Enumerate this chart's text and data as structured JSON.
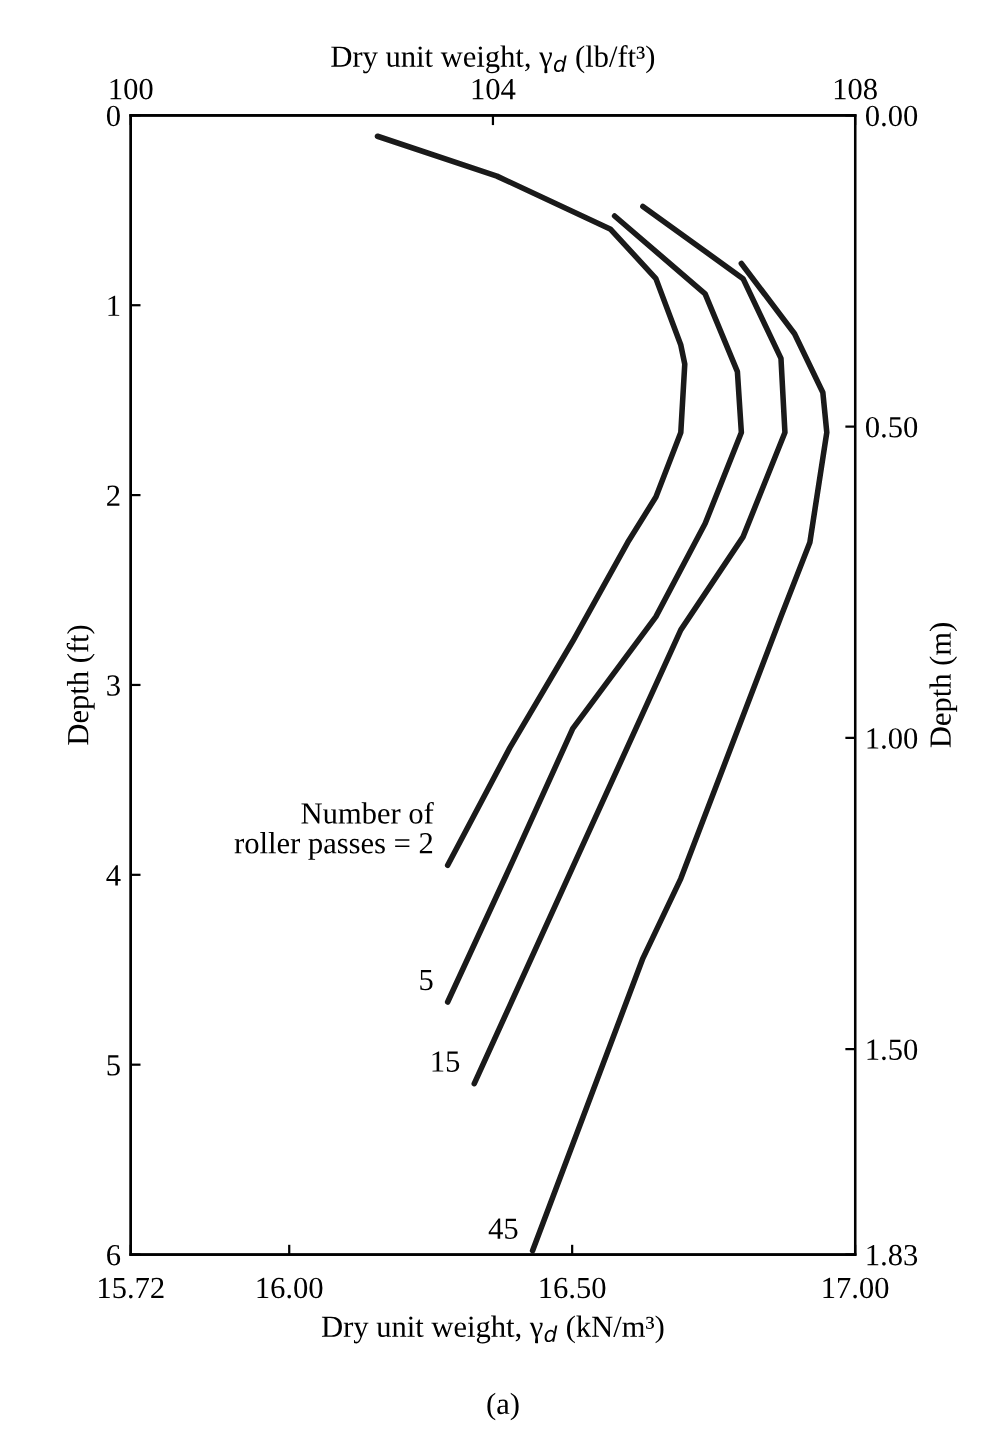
{
  "chart_data": {
    "type": "line",
    "xlabel": "Dry unit weight, γ$_{d}$ (kN/m³)",
    "x2label": "Dry unit weight, γ$_{d}$ (lb/ft³)",
    "ylabel": "Depth (ft)",
    "y2label": "Depth (m)",
    "annotations": [
      "(a)"
    ],
    "xlim": [
      15.72,
      17.0
    ],
    "xticks": [
      15.72,
      {
        "value": 16.0,
        "label": "16.00"
      },
      {
        "value": 16.5,
        "label": "16.50"
      },
      {
        "value": 17.0,
        "label": "17.00"
      }
    ],
    "x2lim": [
      100,
      108
    ],
    "x2ticks": [
      100,
      104,
      108
    ],
    "ylim": [
      6,
      0
    ],
    "yticks": [
      0,
      1,
      2,
      3,
      4,
      5,
      6
    ],
    "y2lim": [
      1.83,
      0.0
    ],
    "y2ticks": [
      {
        "value": 0.0,
        "label": "0.00"
      },
      {
        "value": 0.5,
        "label": "0.50"
      },
      {
        "value": 1.0,
        "label": "1.00"
      },
      {
        "value": 1.5,
        "label": "1.50"
      },
      1.83
    ],
    "grid": false,
    "legend": false,
    "marker": "none",
    "line_style": "solid",
    "series": [
      {
        "name": "Number of\nroller passes = 2",
        "color": "#1a1a1a",
        "x": [
          16.156,
          16.367,
          16.568,
          16.648,
          16.692,
          16.699,
          16.692,
          16.648,
          16.598,
          16.501,
          16.39,
          16.28
        ],
        "values": [
          0.11,
          0.32,
          0.6,
          0.86,
          1.21,
          1.31,
          1.67,
          2.01,
          2.25,
          2.77,
          3.33,
          3.95
        ]
      },
      {
        "name": "5",
        "color": "#1a1a1a",
        "x": [
          16.575,
          16.735,
          16.792,
          16.799,
          16.735,
          16.648,
          16.501,
          16.39,
          16.28
        ],
        "values": [
          0.53,
          0.94,
          1.35,
          1.67,
          2.15,
          2.64,
          3.23,
          3.96,
          4.67
        ]
      },
      {
        "name": "15",
        "color": "#1a1a1a",
        "x": [
          16.625,
          16.802,
          16.869,
          16.876,
          16.802,
          16.692,
          16.501,
          16.327
        ],
        "values": [
          0.48,
          0.86,
          1.28,
          1.67,
          2.22,
          2.71,
          3.96,
          5.1
        ]
      },
      {
        "name": "45",
        "color": "#1a1a1a",
        "x": [
          16.799,
          16.893,
          16.943,
          16.95,
          16.92,
          16.869,
          16.692,
          16.625,
          16.43
        ],
        "values": [
          0.78,
          1.15,
          1.46,
          1.67,
          2.25,
          2.64,
          4.02,
          4.44,
          5.98
        ]
      }
    ]
  }
}
